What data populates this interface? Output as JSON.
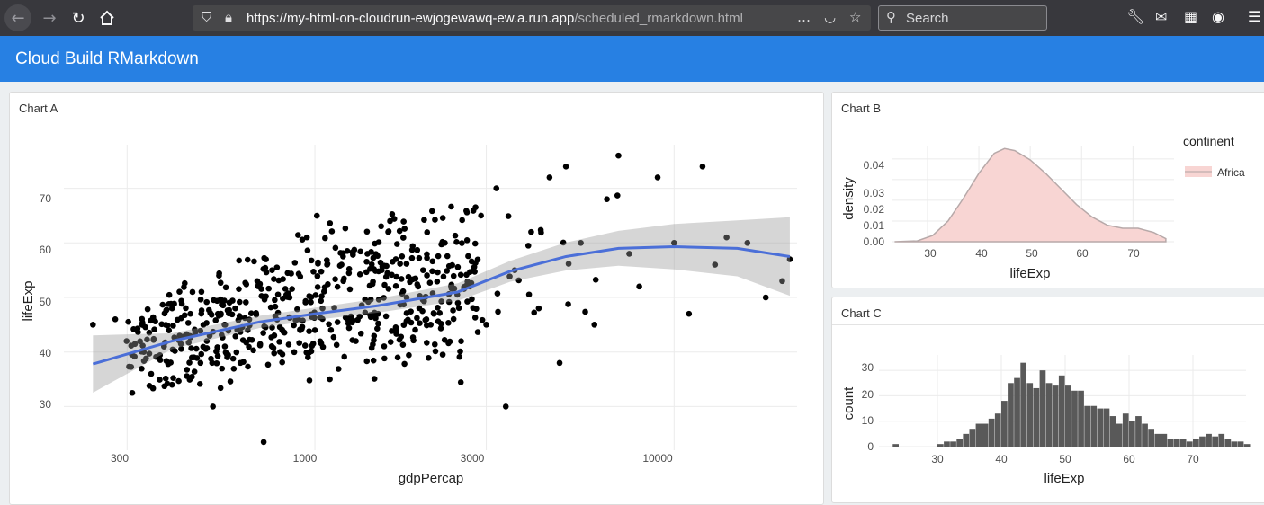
{
  "browser": {
    "url_host": "https://my-html-on-cloudrun-ewjogewawq-ew.a.run.app",
    "url_path": "/scheduled_rmarkdown.html",
    "search_placeholder": "Search",
    "more_icon": "…"
  },
  "app": {
    "title": "Cloud Build RMarkdown"
  },
  "charts": {
    "a": {
      "title": "Chart A",
      "xlabel": "gdpPercap",
      "ylabel": "lifeExp",
      "xticks": [
        "300",
        "1000",
        "3000",
        "10000"
      ],
      "yticks": [
        "30",
        "40",
        "50",
        "60",
        "70"
      ]
    },
    "b": {
      "title": "Chart B",
      "xlabel": "lifeExp",
      "ylabel": "density",
      "legend_title": "continent",
      "legend_item": "Africa",
      "xticks": [
        "30",
        "40",
        "50",
        "60",
        "70"
      ],
      "yticks": [
        "0.00",
        "0.01",
        "0.02",
        "0.03",
        "0.04"
      ]
    },
    "c": {
      "title": "Chart C",
      "xlabel": "lifeExp",
      "ylabel": "count",
      "xticks": [
        "30",
        "40",
        "50",
        "60",
        "70"
      ],
      "yticks": [
        "0",
        "10",
        "20",
        "30"
      ]
    }
  },
  "chart_data": [
    {
      "type": "scatter",
      "xscale": "log10",
      "xlim": [
        200,
        22000
      ],
      "ylim": [
        22,
        78
      ],
      "points_sample": [
        [
          241,
          45
        ],
        [
          278,
          46
        ],
        [
          299,
          42
        ],
        [
          310,
          32.5
        ],
        [
          330,
          45
        ],
        [
          350,
          36
        ],
        [
          380,
          41
        ],
        [
          400,
          34
        ],
        [
          420,
          43
        ],
        [
          450,
          47
        ],
        [
          480,
          38
        ],
        [
          500,
          42
        ],
        [
          520,
          30
        ],
        [
          560,
          45
        ],
        [
          600,
          48
        ],
        [
          620,
          38
        ],
        [
          650,
          44
        ],
        [
          700,
          52
        ],
        [
          720,
          23.5
        ],
        [
          760,
          55
        ],
        [
          800,
          40
        ],
        [
          850,
          50
        ],
        [
          900,
          46
        ],
        [
          950,
          61
        ],
        [
          1000,
          44
        ],
        [
          1050,
          48
        ],
        [
          1100,
          35
        ],
        [
          1200,
          53
        ],
        [
          1300,
          42
        ],
        [
          1400,
          58
        ],
        [
          1500,
          47
        ],
        [
          1600,
          62
        ],
        [
          1700,
          39
        ],
        [
          1800,
          50
        ],
        [
          2000,
          55
        ],
        [
          2100,
          45
        ],
        [
          2300,
          60
        ],
        [
          2500,
          49
        ],
        [
          2700,
          52
        ],
        [
          2900,
          65
        ],
        [
          3000,
          45
        ],
        [
          3200,
          70
        ],
        [
          3400,
          30
        ],
        [
          3600,
          55
        ],
        [
          4000,
          62
        ],
        [
          4200,
          48
        ],
        [
          4500,
          72
        ],
        [
          4800,
          38
        ],
        [
          5000,
          74
        ],
        [
          5500,
          60
        ],
        [
          6000,
          45
        ],
        [
          6500,
          68
        ],
        [
          7000,
          76
        ],
        [
          7500,
          58
        ],
        [
          8000,
          52
        ],
        [
          9000,
          72
        ],
        [
          10000,
          60
        ],
        [
          11000,
          47
        ],
        [
          12000,
          74
        ],
        [
          13000,
          56
        ],
        [
          14000,
          61
        ],
        [
          16000,
          60
        ],
        [
          18000,
          50
        ],
        [
          20000,
          53
        ],
        [
          21000,
          57
        ]
      ],
      "smooth": {
        "x": [
          241,
          400,
          700,
          1000,
          1500,
          2500,
          3500,
          5000,
          7000,
          10000,
          15000,
          21000
        ],
        "y": [
          37.8,
          42,
          45.5,
          47,
          48.5,
          51,
          54.8,
          57.5,
          59,
          59.3,
          59,
          57.5
        ]
      },
      "xlabel": "gdpPercap",
      "ylabel": "lifeExp"
    },
    {
      "type": "area",
      "series": [
        {
          "name": "Africa",
          "x": [
            23.6,
            28,
            31,
            34,
            37,
            40,
            43,
            45,
            47,
            50,
            53,
            56,
            59,
            62,
            65,
            68,
            71,
            74,
            76.4
          ],
          "y": [
            0.0,
            0.0004,
            0.003,
            0.01,
            0.021,
            0.033,
            0.0427,
            0.045,
            0.044,
            0.0395,
            0.033,
            0.0255,
            0.018,
            0.012,
            0.008,
            0.0065,
            0.0065,
            0.0045,
            0.0015
          ]
        }
      ],
      "xlabel": "lifeExp",
      "ylabel": "density",
      "xlim": [
        23,
        78
      ],
      "ylim": [
        0,
        0.046
      ],
      "legend_title": "continent"
    },
    {
      "type": "bar",
      "bins_start": 23,
      "bin_width": 1,
      "counts": [
        1,
        0,
        0,
        0,
        0,
        0,
        0,
        1,
        2,
        2,
        3,
        5,
        7,
        9,
        9,
        11,
        13,
        18,
        25,
        27,
        33,
        25,
        23,
        30,
        25,
        24,
        28,
        24,
        22,
        22,
        16,
        16,
        15,
        15,
        12,
        9,
        13,
        10,
        12,
        9,
        7,
        5,
        5,
        3,
        3,
        3,
        2,
        3,
        4,
        5,
        4,
        5,
        3,
        2,
        2,
        1
      ],
      "xlabel": "lifeExp",
      "ylabel": "count",
      "ylim": [
        0,
        35
      ]
    }
  ]
}
